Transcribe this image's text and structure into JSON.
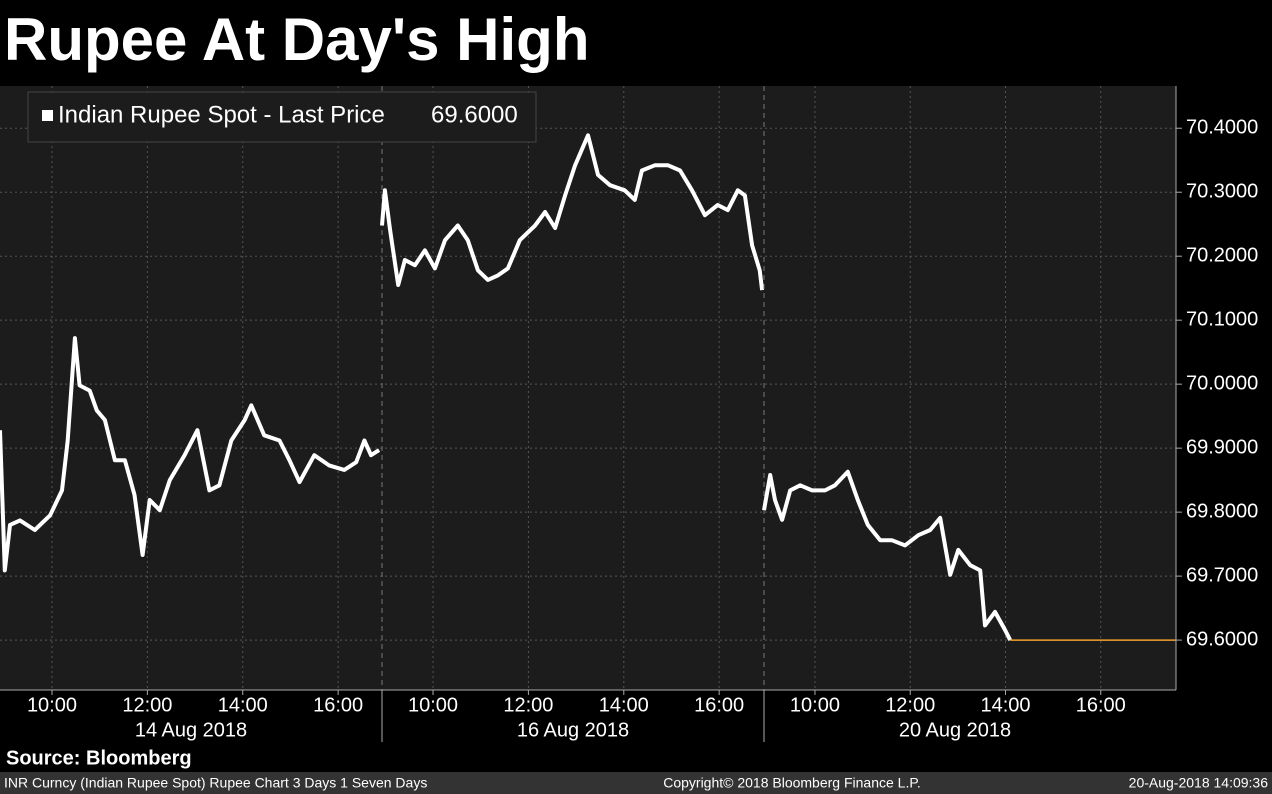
{
  "chart_data": {
    "type": "line",
    "title": "Rupee At Day's High",
    "series": [
      {
        "name": "Indian Rupee Spot - Last Price",
        "color": "#ffffff"
      }
    ],
    "last_price": {
      "value": 69.6,
      "label": "69.6000",
      "color": "#f0a030"
    },
    "ylim": [
      69.522,
      70.466
    ],
    "yticks": [
      {
        "value": 69.6,
        "label": "69.6000"
      },
      {
        "value": 69.7,
        "label": "69.7000"
      },
      {
        "value": 69.8,
        "label": "69.8000"
      },
      {
        "value": 69.9,
        "label": "69.9000"
      },
      {
        "value": 70.0,
        "label": "70.0000"
      },
      {
        "value": 70.1,
        "label": "70.1000"
      },
      {
        "value": 70.2,
        "label": "70.2000"
      },
      {
        "value": 70.3,
        "label": "70.3000"
      },
      {
        "value": 70.4,
        "label": "70.4000"
      }
    ],
    "grid": true,
    "days": [
      {
        "label": "14 Aug 2018",
        "xlim": [
          8.91,
          16.92
        ],
        "xticks": [
          {
            "value": 10,
            "label": "10:00"
          },
          {
            "value": 12,
            "label": "12:00"
          },
          {
            "value": 14,
            "label": "14:00"
          },
          {
            "value": 16,
            "label": "16:00"
          }
        ],
        "x": [
          8.91,
          9.01,
          9.12,
          9.33,
          9.64,
          9.96,
          10.21,
          10.33,
          10.48,
          10.58,
          10.79,
          10.94,
          11.11,
          11.32,
          11.53,
          11.73,
          11.9,
          12.05,
          12.26,
          12.47,
          12.78,
          13.05,
          13.3,
          13.51,
          13.76,
          14.04,
          14.18,
          14.45,
          14.77,
          14.98,
          15.19,
          15.5,
          15.81,
          16.13,
          16.38,
          16.55,
          16.69,
          16.86
        ],
        "values": [
          69.928,
          69.709,
          69.78,
          69.787,
          69.772,
          69.795,
          69.834,
          69.912,
          70.072,
          69.998,
          69.99,
          69.959,
          69.944,
          69.881,
          69.881,
          69.827,
          69.733,
          69.819,
          69.803,
          69.85,
          69.889,
          69.928,
          69.834,
          69.842,
          69.912,
          69.944,
          69.967,
          69.92,
          69.912,
          69.881,
          69.847,
          69.889,
          69.873,
          69.866,
          69.878,
          69.912,
          69.889,
          69.897
        ]
      },
      {
        "label": "16 Aug 2018",
        "xlim": [
          8.93,
          16.94
        ],
        "xticks": [
          {
            "value": 10,
            "label": "10:00"
          },
          {
            "value": 12,
            "label": "12:00"
          },
          {
            "value": 14,
            "label": "14:00"
          },
          {
            "value": 16,
            "label": "16:00"
          }
        ],
        "x": [
          8.93,
          8.99,
          9.1,
          9.27,
          9.41,
          9.62,
          9.83,
          10.04,
          10.25,
          10.52,
          10.73,
          10.94,
          11.15,
          11.36,
          11.57,
          11.82,
          12.14,
          12.35,
          12.56,
          12.77,
          12.98,
          13.25,
          13.46,
          13.71,
          14.02,
          14.23,
          14.38,
          14.65,
          14.93,
          15.18,
          15.43,
          15.7,
          15.97,
          16.18,
          16.39,
          16.54,
          16.69,
          16.85,
          16.9
        ],
        "values": [
          70.248,
          70.303,
          70.241,
          70.155,
          70.194,
          70.186,
          70.209,
          70.181,
          70.225,
          70.248,
          70.225,
          70.178,
          70.163,
          70.17,
          70.181,
          70.225,
          70.248,
          70.269,
          70.244,
          70.295,
          70.342,
          70.389,
          70.327,
          70.311,
          70.303,
          70.288,
          70.334,
          70.342,
          70.342,
          70.334,
          70.303,
          70.264,
          70.28,
          70.272,
          70.303,
          70.295,
          70.217,
          70.178,
          70.147
        ]
      },
      {
        "label": "20 Aug 2018",
        "xlim": [
          8.93,
          17.58
        ],
        "xticks": [
          {
            "value": 10,
            "label": "10:00"
          },
          {
            "value": 12,
            "label": "12:00"
          },
          {
            "value": 14,
            "label": "14:00"
          },
          {
            "value": 16,
            "label": "16:00"
          }
        ],
        "x": [
          8.93,
          9.06,
          9.16,
          9.31,
          9.48,
          9.69,
          9.94,
          10.21,
          10.42,
          10.69,
          10.9,
          11.11,
          11.37,
          11.62,
          11.89,
          12.17,
          12.42,
          12.63,
          12.84,
          13.01,
          13.26,
          13.47,
          13.57,
          13.78,
          13.99,
          14.1
        ],
        "values": [
          69.803,
          69.858,
          69.819,
          69.788,
          69.834,
          69.842,
          69.834,
          69.834,
          69.842,
          69.863,
          69.819,
          69.78,
          69.756,
          69.756,
          69.748,
          69.764,
          69.772,
          69.791,
          69.702,
          69.741,
          69.717,
          69.709,
          69.623,
          69.644,
          69.616,
          69.6
        ]
      }
    ],
    "source": "Source: Bloomberg",
    "footer_left": "INR Curncy (Indian Rupee Spot) Rupee Chart 3 Days 1 Seven Days",
    "footer_center": "Copyright© 2018 Bloomberg Finance L.P.",
    "footer_right": "20-Aug-2018 14:09:36"
  }
}
